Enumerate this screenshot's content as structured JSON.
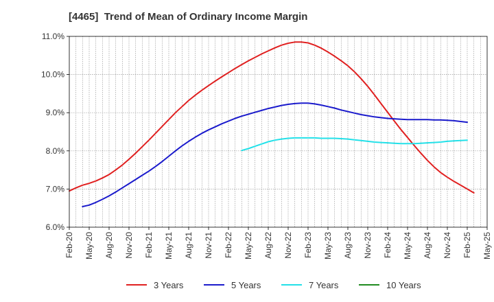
{
  "chart_data": {
    "type": "line",
    "title": "[4465]  Trend of Mean of Ordinary Income Margin",
    "xlabel": "",
    "ylabel": "",
    "x_ticks": [
      "Feb-20",
      "May-20",
      "Aug-20",
      "Nov-20",
      "Feb-21",
      "May-21",
      "Aug-21",
      "Nov-21",
      "Feb-22",
      "May-22",
      "Aug-22",
      "Nov-22",
      "Feb-23",
      "May-23",
      "Aug-23",
      "Nov-23",
      "Feb-24",
      "May-24",
      "Aug-24",
      "Nov-24",
      "Feb-25",
      "May-25"
    ],
    "y_ticks": [
      "6.0%",
      "7.0%",
      "8.0%",
      "9.0%",
      "10.0%",
      "11.0%"
    ],
    "ylim": [
      6.0,
      11.0
    ],
    "grid": true,
    "legend_position": "bottom",
    "series": [
      {
        "name": "3 Years",
        "color": "#e02020",
        "x_start": "Feb-20",
        "values": [
          6.95,
          7.03,
          7.1,
          7.15,
          7.21,
          7.29,
          7.38,
          7.5,
          7.63,
          7.78,
          7.94,
          8.11,
          8.28,
          8.46,
          8.64,
          8.82,
          9.0,
          9.16,
          9.32,
          9.46,
          9.59,
          9.71,
          9.83,
          9.94,
          10.05,
          10.16,
          10.26,
          10.36,
          10.45,
          10.54,
          10.62,
          10.7,
          10.77,
          10.82,
          10.85,
          10.85,
          10.83,
          10.77,
          10.69,
          10.59,
          10.48,
          10.36,
          10.23,
          10.07,
          9.89,
          9.69,
          9.47,
          9.24,
          9.01,
          8.78,
          8.56,
          8.35,
          8.14,
          7.94,
          7.75,
          7.58,
          7.43,
          7.31,
          7.2,
          7.1,
          7.0,
          6.9
        ]
      },
      {
        "name": "5 Years",
        "color": "#1a1acc",
        "x_start": "Feb-20",
        "values": [
          null,
          null,
          6.54,
          6.58,
          6.65,
          6.73,
          6.82,
          6.92,
          7.03,
          7.14,
          7.25,
          7.36,
          7.47,
          7.59,
          7.72,
          7.86,
          8.0,
          8.13,
          8.25,
          8.36,
          8.46,
          8.55,
          8.63,
          8.71,
          8.78,
          8.85,
          8.91,
          8.96,
          9.01,
          9.06,
          9.11,
          9.15,
          9.19,
          9.22,
          9.24,
          9.25,
          9.25,
          9.23,
          9.2,
          9.16,
          9.12,
          9.07,
          9.03,
          8.99,
          8.95,
          8.92,
          8.89,
          8.87,
          8.85,
          8.84,
          8.83,
          8.82,
          8.82,
          8.82,
          8.82,
          8.81,
          8.81,
          8.8,
          8.79,
          8.77,
          8.75,
          null
        ]
      },
      {
        "name": "7 Years",
        "color": "#22e0e8",
        "x_start": "Feb-20",
        "values": [
          null,
          null,
          null,
          null,
          null,
          null,
          null,
          null,
          null,
          null,
          null,
          null,
          null,
          null,
          null,
          null,
          null,
          null,
          null,
          null,
          null,
          null,
          null,
          null,
          null,
          null,
          8.01,
          8.06,
          8.12,
          8.18,
          8.24,
          8.28,
          8.31,
          8.33,
          8.34,
          8.34,
          8.34,
          8.34,
          8.33,
          8.33,
          8.33,
          8.32,
          8.31,
          8.29,
          8.27,
          8.25,
          8.23,
          8.22,
          8.21,
          8.2,
          8.19,
          8.19,
          8.19,
          8.2,
          8.21,
          8.22,
          8.23,
          8.25,
          8.26,
          8.27,
          8.28,
          null
        ]
      },
      {
        "name": "10 Years",
        "color": "#1f8a1f",
        "x_start": "Feb-20",
        "values": []
      }
    ]
  }
}
